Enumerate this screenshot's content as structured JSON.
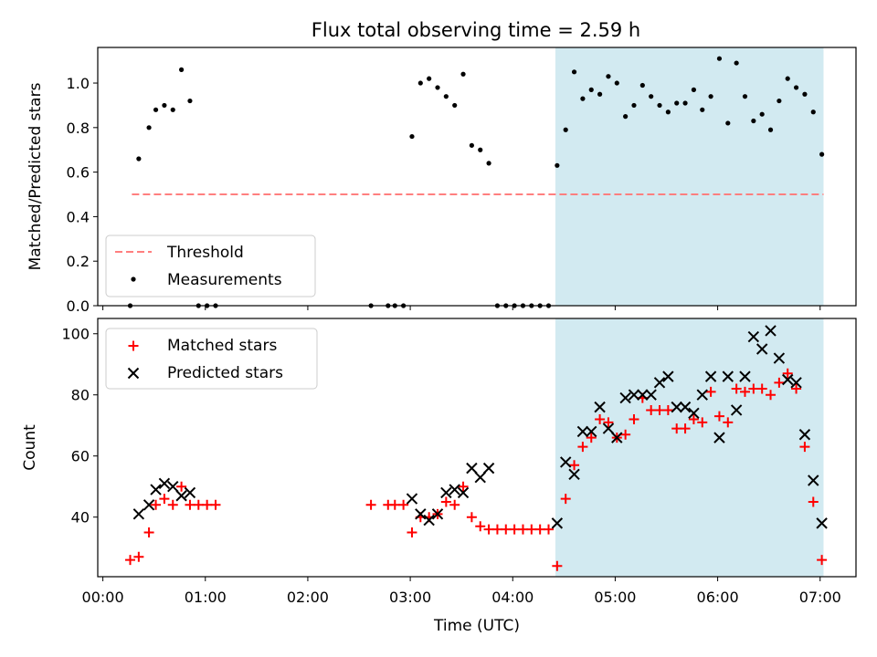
{
  "title": "Flux total observing time = 2.59 h",
  "colors": {
    "shade": "#add8e6",
    "threshold": "#ff7f7f",
    "measurement": "#000000",
    "matched": "#ff0000",
    "predicted": "#000000"
  },
  "chart_data": [
    {
      "type": "scatter",
      "ylabel": "Matched/Predicted stars",
      "xlabel": "",
      "xlim_hours": [
        -0.05,
        7.35
      ],
      "ylim": [
        0,
        1.16
      ],
      "yticks": [
        0.0,
        0.2,
        0.4,
        0.6,
        0.8,
        1.0
      ],
      "ytick_labels": [
        "0.0",
        "0.2",
        "0.4",
        "0.6",
        "0.8",
        "1.0"
      ],
      "shaded_span": [
        "04:25",
        "07:02"
      ],
      "threshold": {
        "name": "Threshold",
        "value": 0.5,
        "x_range": [
          "00:17",
          "07:02"
        ]
      },
      "legend": {
        "placement": "lower-left",
        "entries": [
          "Threshold",
          "Measurements"
        ]
      },
      "series": [
        {
          "name": "Measurements",
          "marker": "dot",
          "points": [
            [
              "00:16",
              0.0
            ],
            [
              "00:21",
              0.66
            ],
            [
              "00:27",
              0.8
            ],
            [
              "00:31",
              0.88
            ],
            [
              "00:36",
              0.9
            ],
            [
              "00:41",
              0.88
            ],
            [
              "00:46",
              1.06
            ],
            [
              "00:51",
              0.92
            ],
            [
              "00:56",
              0.0
            ],
            [
              "01:01",
              0.0
            ],
            [
              "01:06",
              0.0
            ],
            [
              "02:37",
              0.0
            ],
            [
              "02:47",
              0.0
            ],
            [
              "02:51",
              0.0
            ],
            [
              "02:56",
              0.0
            ],
            [
              "03:01",
              0.76
            ],
            [
              "03:06",
              1.0
            ],
            [
              "03:11",
              1.02
            ],
            [
              "03:16",
              0.98
            ],
            [
              "03:21",
              0.94
            ],
            [
              "03:26",
              0.9
            ],
            [
              "03:31",
              1.04
            ],
            [
              "03:36",
              0.72
            ],
            [
              "03:41",
              0.7
            ],
            [
              "03:46",
              0.64
            ],
            [
              "03:51",
              0.0
            ],
            [
              "03:56",
              0.0
            ],
            [
              "04:01",
              0.0
            ],
            [
              "04:06",
              0.0
            ],
            [
              "04:11",
              0.0
            ],
            [
              "04:16",
              0.0
            ],
            [
              "04:21",
              0.0
            ],
            [
              "04:26",
              0.63
            ],
            [
              "04:31",
              0.79
            ],
            [
              "04:36",
              1.05
            ],
            [
              "04:41",
              0.93
            ],
            [
              "04:46",
              0.97
            ],
            [
              "04:51",
              0.95
            ],
            [
              "04:56",
              1.03
            ],
            [
              "05:01",
              1.0
            ],
            [
              "05:06",
              0.85
            ],
            [
              "05:11",
              0.9
            ],
            [
              "05:16",
              0.99
            ],
            [
              "05:21",
              0.94
            ],
            [
              "05:26",
              0.9
            ],
            [
              "05:31",
              0.87
            ],
            [
              "05:36",
              0.91
            ],
            [
              "05:41",
              0.91
            ],
            [
              "05:46",
              0.97
            ],
            [
              "05:51",
              0.88
            ],
            [
              "05:56",
              0.94
            ],
            [
              "06:01",
              1.11
            ],
            [
              "06:06",
              0.82
            ],
            [
              "06:11",
              1.09
            ],
            [
              "06:16",
              0.94
            ],
            [
              "06:21",
              0.83
            ],
            [
              "06:26",
              0.86
            ],
            [
              "06:31",
              0.79
            ],
            [
              "06:36",
              0.92
            ],
            [
              "06:41",
              1.02
            ],
            [
              "06:46",
              0.98
            ],
            [
              "06:51",
              0.95
            ],
            [
              "06:56",
              0.87
            ],
            [
              "07:01",
              0.68
            ]
          ]
        }
      ]
    },
    {
      "type": "scatter",
      "ylabel": "Count",
      "xlabel": "Time (UTC)",
      "xlim_hours": [
        -0.05,
        7.35
      ],
      "ylim": [
        20.5,
        105
      ],
      "yticks": [
        40,
        60,
        80,
        100
      ],
      "ytick_labels": [
        "40",
        "60",
        "80",
        "100"
      ],
      "xticks": [
        "00:00",
        "01:00",
        "02:00",
        "03:00",
        "04:00",
        "05:00",
        "06:00",
        "07:00"
      ],
      "shaded_span": [
        "04:25",
        "07:02"
      ],
      "legend": {
        "placement": "upper-left",
        "entries": [
          "Matched stars",
          "Predicted stars"
        ]
      },
      "series": [
        {
          "name": "Matched stars",
          "marker": "plus",
          "points": [
            [
              "00:16",
              26
            ],
            [
              "00:21",
              27
            ],
            [
              "00:27",
              35
            ],
            [
              "00:31",
              44
            ],
            [
              "00:36",
              46
            ],
            [
              "00:41",
              44
            ],
            [
              "00:46",
              50
            ],
            [
              "00:51",
              44
            ],
            [
              "00:56",
              44
            ],
            [
              "01:01",
              44
            ],
            [
              "01:06",
              44
            ],
            [
              "02:37",
              44
            ],
            [
              "02:47",
              44
            ],
            [
              "02:51",
              44
            ],
            [
              "02:56",
              44
            ],
            [
              "03:01",
              35
            ],
            [
              "03:06",
              40
            ],
            [
              "03:11",
              40
            ],
            [
              "03:16",
              41
            ],
            [
              "03:21",
              45
            ],
            [
              "03:26",
              44
            ],
            [
              "03:31",
              50
            ],
            [
              "03:36",
              40
            ],
            [
              "03:41",
              37
            ],
            [
              "03:46",
              36
            ],
            [
              "03:51",
              36
            ],
            [
              "03:56",
              36
            ],
            [
              "04:01",
              36
            ],
            [
              "04:06",
              36
            ],
            [
              "04:11",
              36
            ],
            [
              "04:16",
              36
            ],
            [
              "04:21",
              36
            ],
            [
              "04:26",
              24
            ],
            [
              "04:31",
              46
            ],
            [
              "04:36",
              57
            ],
            [
              "04:41",
              63
            ],
            [
              "04:46",
              66
            ],
            [
              "04:51",
              72
            ],
            [
              "04:56",
              71
            ],
            [
              "05:01",
              66
            ],
            [
              "05:06",
              67
            ],
            [
              "05:11",
              72
            ],
            [
              "05:16",
              79
            ],
            [
              "05:21",
              75
            ],
            [
              "05:26",
              75
            ],
            [
              "05:31",
              75
            ],
            [
              "05:36",
              69
            ],
            [
              "05:41",
              69
            ],
            [
              "05:46",
              72
            ],
            [
              "05:51",
              71
            ],
            [
              "05:56",
              81
            ],
            [
              "06:01",
              73
            ],
            [
              "06:06",
              71
            ],
            [
              "06:11",
              82
            ],
            [
              "06:16",
              81
            ],
            [
              "06:21",
              82
            ],
            [
              "06:26",
              82
            ],
            [
              "06:31",
              80
            ],
            [
              "06:36",
              84
            ],
            [
              "06:41",
              87
            ],
            [
              "06:46",
              82
            ],
            [
              "06:51",
              63
            ],
            [
              "06:56",
              45
            ],
            [
              "07:01",
              26
            ]
          ]
        },
        {
          "name": "Predicted stars",
          "marker": "x",
          "points": [
            [
              "00:21",
              41
            ],
            [
              "00:27",
              44
            ],
            [
              "00:31",
              49
            ],
            [
              "00:36",
              51
            ],
            [
              "00:41",
              50
            ],
            [
              "00:46",
              47
            ],
            [
              "00:51",
              48
            ],
            [
              "03:01",
              46
            ],
            [
              "03:06",
              41
            ],
            [
              "03:11",
              39
            ],
            [
              "03:16",
              41
            ],
            [
              "03:21",
              48
            ],
            [
              "03:26",
              49
            ],
            [
              "03:31",
              48
            ],
            [
              "03:36",
              56
            ],
            [
              "03:41",
              53
            ],
            [
              "03:46",
              56
            ],
            [
              "04:26",
              38
            ],
            [
              "04:31",
              58
            ],
            [
              "04:36",
              54
            ],
            [
              "04:41",
              68
            ],
            [
              "04:46",
              68
            ],
            [
              "04:51",
              76
            ],
            [
              "04:56",
              69
            ],
            [
              "05:01",
              66
            ],
            [
              "05:06",
              79
            ],
            [
              "05:11",
              80
            ],
            [
              "05:16",
              80
            ],
            [
              "05:21",
              80
            ],
            [
              "05:26",
              84
            ],
            [
              "05:31",
              86
            ],
            [
              "05:36",
              76
            ],
            [
              "05:41",
              76
            ],
            [
              "05:46",
              74
            ],
            [
              "05:51",
              80
            ],
            [
              "05:56",
              86
            ],
            [
              "06:01",
              66
            ],
            [
              "06:06",
              86
            ],
            [
              "06:11",
              75
            ],
            [
              "06:16",
              86
            ],
            [
              "06:21",
              99
            ],
            [
              "06:26",
              95
            ],
            [
              "06:31",
              101
            ],
            [
              "06:36",
              92
            ],
            [
              "06:41",
              85
            ],
            [
              "06:46",
              84
            ],
            [
              "06:51",
              67
            ],
            [
              "06:56",
              52
            ],
            [
              "07:01",
              38
            ]
          ]
        }
      ]
    }
  ]
}
